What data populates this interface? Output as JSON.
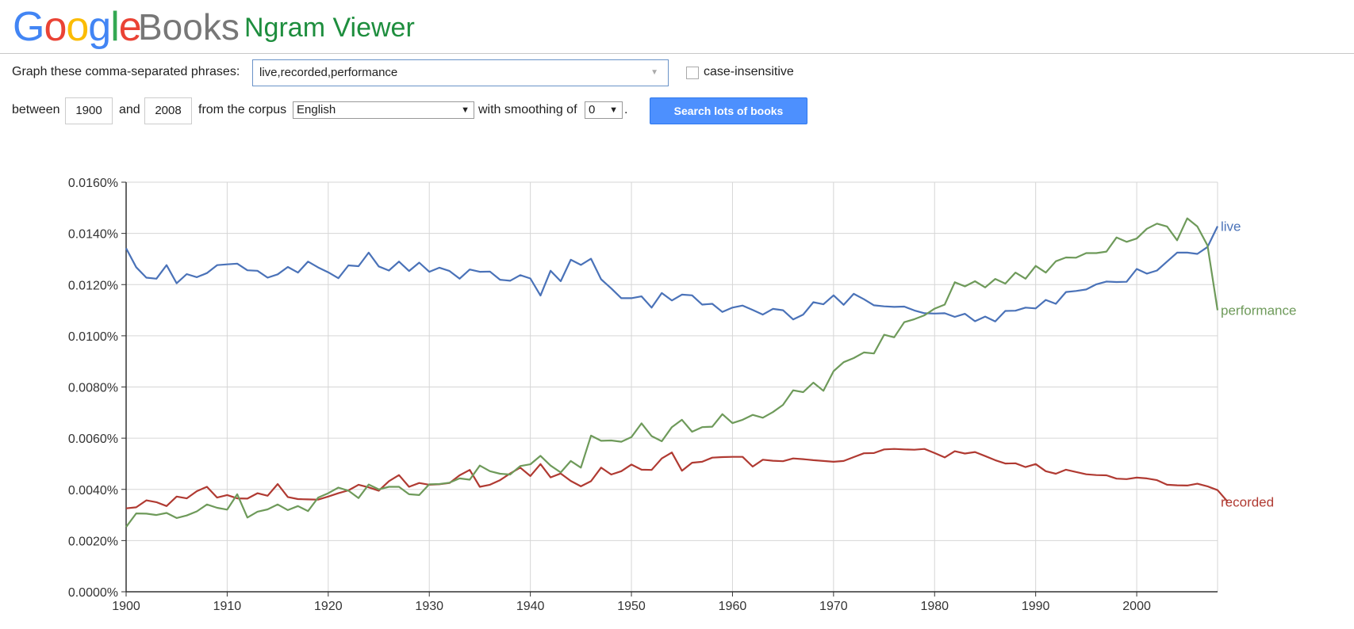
{
  "header": {
    "logo": {
      "letters": [
        "G",
        "o",
        "o",
        "g",
        "l",
        "e"
      ],
      "colors": [
        "#4285f4",
        "#ea4335",
        "#fbbc05",
        "#4285f4",
        "#34a853",
        "#ea4335"
      ]
    },
    "books_label": "Books",
    "app_title": "Ngram Viewer"
  },
  "controls": {
    "phrases_label": "Graph these comma-separated phrases:",
    "phrases_value": "live,recorded,performance",
    "case_label": "case-insensitive",
    "between_label": "between",
    "start_year": "1900",
    "and_label": "and",
    "end_year": "2008",
    "corpus_label": "from the corpus",
    "corpus_value": "English",
    "smoothing_label": "with smoothing of",
    "smoothing_value": "0",
    "period": ".",
    "search_button": "Search lots of books"
  },
  "chart_data": {
    "type": "line",
    "xlim": [
      1900,
      2008
    ],
    "ylim": [
      0,
      0.016
    ],
    "x_ticks": [
      1900,
      1910,
      1920,
      1930,
      1940,
      1950,
      1960,
      1970,
      1980,
      1990,
      2000
    ],
    "y_ticks": [
      "0.0000%",
      "0.0020%",
      "0.0040%",
      "0.0060%",
      "0.0080%",
      "0.0100%",
      "0.0120%",
      "0.0140%",
      "0.0160%"
    ],
    "grid": true,
    "legend": "line-end labels",
    "x_start": 1900,
    "series": [
      {
        "name": "live",
        "color": "#4a72b8",
        "values": [
          0.01342,
          0.01268,
          0.01227,
          0.01223,
          0.01276,
          0.01205,
          0.01241,
          0.01229,
          0.01245,
          0.01276,
          0.01279,
          0.01282,
          0.01256,
          0.01254,
          0.01227,
          0.0124,
          0.01269,
          0.01247,
          0.0129,
          0.01267,
          0.01248,
          0.01225,
          0.01275,
          0.01272,
          0.01325,
          0.01271,
          0.01255,
          0.0129,
          0.01253,
          0.01286,
          0.0125,
          0.01266,
          0.01253,
          0.01223,
          0.01259,
          0.0125,
          0.01251,
          0.01219,
          0.01215,
          0.01237,
          0.01224,
          0.01157,
          0.01254,
          0.01213,
          0.01297,
          0.01277,
          0.01301,
          0.01221,
          0.01185,
          0.01147,
          0.01147,
          0.01154,
          0.0111,
          0.01167,
          0.01138,
          0.01161,
          0.01158,
          0.01122,
          0.01125,
          0.01093,
          0.0111,
          0.01118,
          0.01101,
          0.01083,
          0.01105,
          0.011,
          0.01064,
          0.01083,
          0.01131,
          0.01123,
          0.01158,
          0.01121,
          0.01164,
          0.01143,
          0.01119,
          0.01115,
          0.01113,
          0.01114,
          0.01099,
          0.01088,
          0.01087,
          0.01088,
          0.01074,
          0.01086,
          0.01057,
          0.01075,
          0.01056,
          0.01097,
          0.01098,
          0.0111,
          0.01107,
          0.0114,
          0.01125,
          0.01171,
          0.01175,
          0.01181,
          0.01201,
          0.01212,
          0.0121,
          0.01211,
          0.01261,
          0.01243,
          0.01255,
          0.0129,
          0.01325,
          0.01325,
          0.0132,
          0.01347,
          0.01428
        ]
      },
      {
        "name": "recorded",
        "color": "#b03a32",
        "values": [
          0.00326,
          0.0033,
          0.00357,
          0.0035,
          0.00335,
          0.00372,
          0.00365,
          0.00393,
          0.0041,
          0.00368,
          0.00378,
          0.00365,
          0.00364,
          0.00385,
          0.00375,
          0.00421,
          0.0037,
          0.00362,
          0.00361,
          0.0036,
          0.00372,
          0.00385,
          0.00396,
          0.00418,
          0.00408,
          0.00395,
          0.00432,
          0.00456,
          0.0041,
          0.00425,
          0.00418,
          0.0042,
          0.00425,
          0.00455,
          0.00476,
          0.0041,
          0.00418,
          0.00436,
          0.00462,
          0.00485,
          0.00452,
          0.00499,
          0.00447,
          0.00462,
          0.00433,
          0.00412,
          0.00432,
          0.00485,
          0.00458,
          0.00471,
          0.00497,
          0.00477,
          0.00476,
          0.00521,
          0.00544,
          0.00473,
          0.00504,
          0.00508,
          0.00524,
          0.00526,
          0.00527,
          0.00527,
          0.00489,
          0.00516,
          0.00512,
          0.0051,
          0.00521,
          0.00518,
          0.00514,
          0.00511,
          0.00508,
          0.00511,
          0.00526,
          0.00541,
          0.00542,
          0.00556,
          0.00558,
          0.00556,
          0.00555,
          0.00558,
          0.00542,
          0.00525,
          0.00549,
          0.0054,
          0.00546,
          0.0053,
          0.00514,
          0.00501,
          0.00502,
          0.00487,
          0.00499,
          0.00471,
          0.00461,
          0.00477,
          0.00468,
          0.00459,
          0.00456,
          0.00455,
          0.00442,
          0.0044,
          0.00446,
          0.00443,
          0.00436,
          0.00418,
          0.00416,
          0.00415,
          0.00422,
          0.00412,
          0.00397,
          0.00352
        ]
      },
      {
        "name": "performance",
        "color": "#6e9a5a",
        "values": [
          0.00253,
          0.00306,
          0.00305,
          0.003,
          0.00308,
          0.00288,
          0.00298,
          0.00314,
          0.00341,
          0.00328,
          0.00321,
          0.00381,
          0.0029,
          0.00313,
          0.00322,
          0.00341,
          0.00319,
          0.00335,
          0.00315,
          0.00368,
          0.00385,
          0.00407,
          0.00395,
          0.00366,
          0.00419,
          0.004,
          0.0041,
          0.0041,
          0.00381,
          0.00378,
          0.0042,
          0.00421,
          0.00426,
          0.00443,
          0.00438,
          0.00493,
          0.00471,
          0.00461,
          0.00458,
          0.00491,
          0.00498,
          0.00531,
          0.00493,
          0.00466,
          0.00511,
          0.00485,
          0.0061,
          0.0059,
          0.00591,
          0.00586,
          0.00604,
          0.00658,
          0.00608,
          0.00588,
          0.00643,
          0.00672,
          0.00625,
          0.00643,
          0.00645,
          0.00694,
          0.00659,
          0.00672,
          0.00691,
          0.0068,
          0.00702,
          0.0073,
          0.00787,
          0.0078,
          0.00817,
          0.00785,
          0.00862,
          0.00897,
          0.00913,
          0.00935,
          0.00931,
          0.01004,
          0.00994,
          0.01053,
          0.01065,
          0.0108,
          0.01106,
          0.01122,
          0.01209,
          0.01193,
          0.01213,
          0.01189,
          0.01222,
          0.01204,
          0.01247,
          0.01223,
          0.01273,
          0.01247,
          0.01291,
          0.01306,
          0.01305,
          0.01323,
          0.01323,
          0.01329,
          0.01384,
          0.01367,
          0.0138,
          0.01418,
          0.01438,
          0.01427,
          0.01373,
          0.01459,
          0.01427,
          0.01353,
          0.011
        ]
      }
    ]
  }
}
